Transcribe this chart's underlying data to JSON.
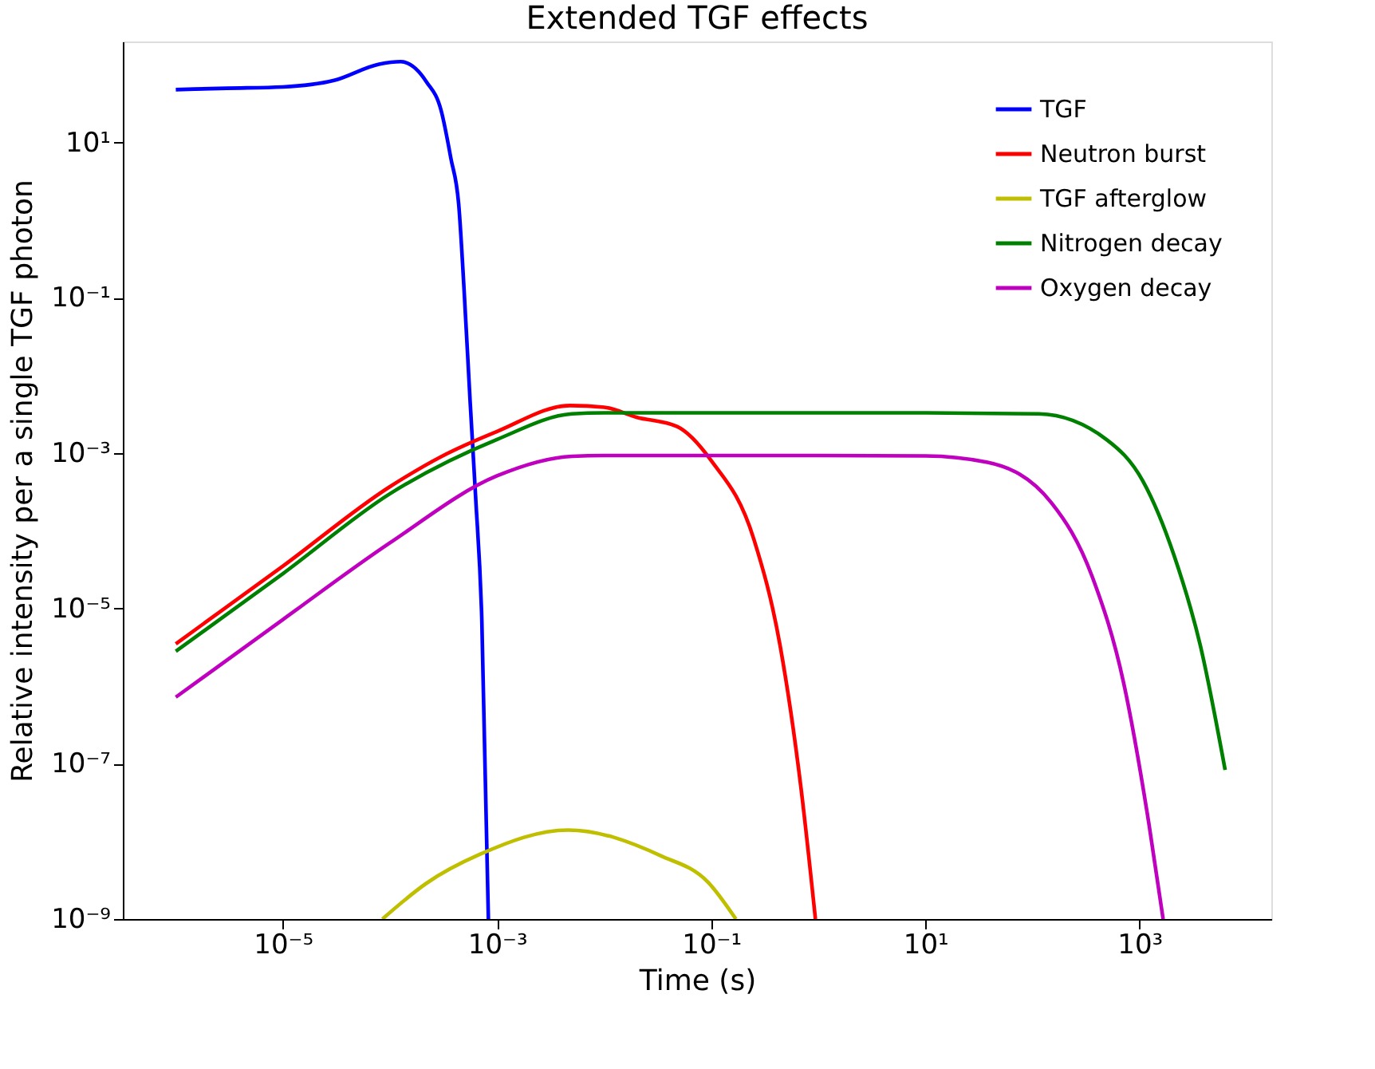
{
  "chart_data": {
    "type": "line",
    "title": "Extended TGF effects",
    "xlabel": "Time (s)",
    "ylabel": "Relative intensity per a single TGF photon",
    "log": "xy",
    "xlim": [
      3.2e-07,
      17000
    ],
    "ylim": [
      1e-09,
      200
    ],
    "xticks": [
      {
        "value": 1e-05,
        "label": "10⁻⁵"
      },
      {
        "value": 0.001,
        "label": "10⁻³"
      },
      {
        "value": 0.1,
        "label": "10⁻¹"
      },
      {
        "value": 10,
        "label": "10¹"
      },
      {
        "value": 1000,
        "label": "10³"
      }
    ],
    "yticks": [
      {
        "value": 1e-09,
        "label": "10⁻⁹"
      },
      {
        "value": 1e-07,
        "label": "10⁻⁷"
      },
      {
        "value": 1e-05,
        "label": "10⁻⁵"
      },
      {
        "value": 0.001,
        "label": "10⁻³"
      },
      {
        "value": 0.1,
        "label": "10⁻¹"
      },
      {
        "value": 10,
        "label": "10¹"
      }
    ],
    "grid": false,
    "legend": "top right",
    "line_style": "solid",
    "marker": "none",
    "series": [
      {
        "name": "TGF",
        "color": "#0000ff",
        "x": [
          1e-06,
          3e-06,
          1e-05,
          3e-05,
          7.9e-05,
          0.000126,
          0.00022,
          0.0003,
          0.00037,
          0.00044,
          0.00049,
          0.00056,
          0.00063,
          0.00072,
          0.00083
        ],
        "values": [
          48,
          50,
          52,
          63,
          102,
          110,
          60,
          26,
          6.3,
          1.5,
          0.14,
          0.0047,
          0.00028,
          7.4e-06,
          1e-09
        ]
      },
      {
        "name": "Neutron burst",
        "color": "#ff0000",
        "x": [
          1e-06,
          1e-05,
          0.0001,
          0.0003,
          0.001,
          0.0048,
          0.01,
          0.02,
          0.048,
          0.1,
          0.25,
          0.44,
          0.69,
          0.94
        ],
        "values": [
          3.5e-06,
          3.5e-05,
          0.00037,
          0.0009,
          0.0019,
          0.0041,
          0.0039,
          0.0029,
          0.0022,
          0.0008,
          7.8e-05,
          3.3e-06,
          4.8e-08,
          1e-09
        ]
      },
      {
        "name": "TGF afterglow",
        "color": "#bfbf00",
        "x": [
          8.5e-05,
          0.00022,
          0.00069,
          0.0046,
          0.034,
          0.093,
          0.17
        ],
        "values": [
          1e-09,
          2.9e-09,
          6.8e-09,
          1.4e-08,
          6.5e-09,
          3e-09,
          1e-09
        ]
      },
      {
        "name": "Nitrogen decay",
        "color": "#008000",
        "x": [
          1e-06,
          1e-05,
          0.0001,
          0.001,
          0.005,
          0.01,
          1,
          10,
          115,
          490,
          1070,
          2100,
          3700,
          6300
        ],
        "values": [
          2.8e-06,
          2.8e-05,
          0.0003,
          0.0015,
          0.0032,
          0.0033,
          0.0033,
          0.0033,
          0.0032,
          0.0015,
          0.00044,
          4.8e-05,
          3.3e-06,
          8.3e-08
        ]
      },
      {
        "name": "Oxygen decay",
        "color": "#bf00bf",
        "x": [
          1e-06,
          1e-05,
          0.0001,
          0.001,
          0.005,
          0.01,
          1,
          10,
          38,
          150,
          360,
          710,
          1230,
          1660
        ],
        "values": [
          7.2e-07,
          7.2e-06,
          7e-05,
          0.00051,
          0.00091,
          0.00093,
          0.00093,
          0.00092,
          0.00076,
          0.00023,
          2.6e-05,
          1.1e-06,
          1.6e-08,
          1e-09
        ]
      }
    ]
  }
}
